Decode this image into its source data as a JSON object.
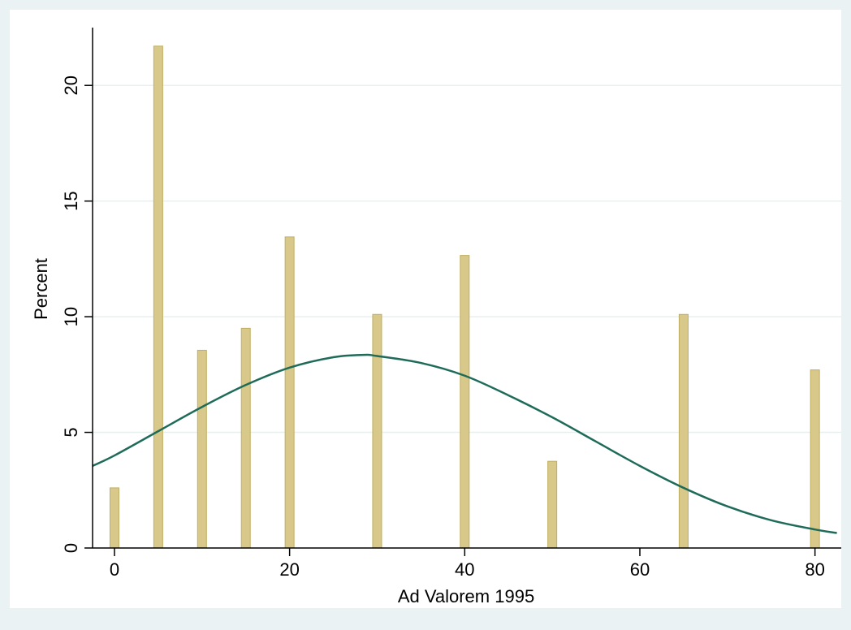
{
  "chart_data": {
    "type": "bar",
    "xlabel": "Ad Valorem 1995",
    "ylabel": "Percent",
    "xlim": [
      -2.5,
      83
    ],
    "ylim": [
      0,
      22.5
    ],
    "xticks": [
      0,
      20,
      40,
      60,
      80
    ],
    "yticks": [
      0,
      5,
      10,
      15,
      20
    ],
    "grid": "horizontal",
    "bars": {
      "x": [
        0,
        5,
        10,
        15,
        20,
        30,
        40,
        50,
        65,
        80
      ],
      "values": [
        2.6,
        21.7,
        8.55,
        9.5,
        13.45,
        10.1,
        12.65,
        3.75,
        10.1,
        7.7
      ]
    },
    "density": {
      "x": [
        -2.5,
        0,
        5,
        10,
        15,
        20,
        25,
        28.5,
        30,
        35,
        40,
        45,
        50,
        55,
        60,
        65,
        70,
        75,
        80,
        82.5
      ],
      "y": [
        3.55,
        4.0,
        5.05,
        6.1,
        7.05,
        7.8,
        8.25,
        8.35,
        8.3,
        8.0,
        7.45,
        6.6,
        5.65,
        4.6,
        3.55,
        2.6,
        1.8,
        1.2,
        0.8,
        0.65
      ]
    },
    "colors": {
      "background": "#eaf2f3",
      "plot_background": "#ffffff",
      "bar_fill": "#d8c98a",
      "bar_stroke": "#c0ae60",
      "density_line": "#1f6b5a",
      "grid": "#e8efef"
    }
  }
}
